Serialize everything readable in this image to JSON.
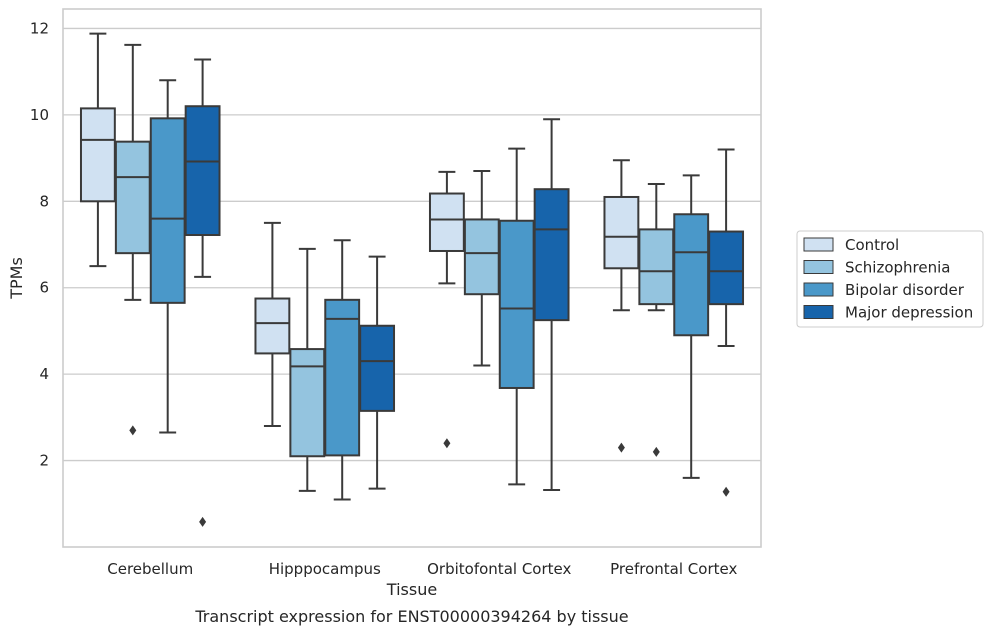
{
  "chart_data": {
    "type": "box",
    "title": "",
    "caption": "Transcript expression for ENST00000394264 by tissue",
    "xlabel": "Tissue",
    "ylabel": "TPMs",
    "ylim": [
      0,
      12.45
    ],
    "yticks": [
      2,
      4,
      6,
      8,
      10,
      12
    ],
    "grid": "horizontal",
    "legend_position": "right",
    "categories": [
      "Cerebellum",
      "Hipppocampus",
      "Orbitofontal Cortex",
      "Prefrontal Cortex"
    ],
    "series": [
      {
        "name": "Control",
        "color": "#d0e1f2",
        "boxes": [
          {
            "whislo": 6.5,
            "q1": 8.0,
            "med": 9.42,
            "q3": 10.15,
            "whishi": 11.88,
            "fliers": []
          },
          {
            "whislo": 2.8,
            "q1": 4.48,
            "med": 5.18,
            "q3": 5.75,
            "whishi": 7.5,
            "fliers": []
          },
          {
            "whislo": 6.1,
            "q1": 6.85,
            "med": 7.58,
            "q3": 8.18,
            "whishi": 8.68,
            "fliers": [
              2.4
            ]
          },
          {
            "whislo": 5.48,
            "q1": 6.45,
            "med": 7.18,
            "q3": 8.1,
            "whishi": 8.95,
            "fliers": [
              2.3
            ]
          }
        ]
      },
      {
        "name": "Schizophrenia",
        "color": "#94c4df",
        "boxes": [
          {
            "whislo": 5.72,
            "q1": 6.8,
            "med": 8.56,
            "q3": 9.38,
            "whishi": 11.62,
            "fliers": [
              2.7
            ]
          },
          {
            "whislo": 1.3,
            "q1": 2.1,
            "med": 4.18,
            "q3": 4.58,
            "whishi": 6.9,
            "fliers": []
          },
          {
            "whislo": 4.2,
            "q1": 5.85,
            "med": 6.8,
            "q3": 7.58,
            "whishi": 8.7,
            "fliers": []
          },
          {
            "whislo": 5.48,
            "q1": 5.62,
            "med": 6.38,
            "q3": 7.35,
            "whishi": 8.4,
            "fliers": [
              2.2
            ]
          }
        ]
      },
      {
        "name": "Bipolar disorder",
        "color": "#4a98c9",
        "boxes": [
          {
            "whislo": 2.65,
            "q1": 5.65,
            "med": 7.6,
            "q3": 9.92,
            "whishi": 10.8,
            "fliers": []
          },
          {
            "whislo": 1.1,
            "q1": 2.12,
            "med": 5.28,
            "q3": 5.72,
            "whishi": 7.1,
            "fliers": []
          },
          {
            "whislo": 1.45,
            "q1": 3.68,
            "med": 5.52,
            "q3": 7.55,
            "whishi": 9.22,
            "fliers": []
          },
          {
            "whislo": 1.6,
            "q1": 4.9,
            "med": 6.82,
            "q3": 7.7,
            "whishi": 8.6,
            "fliers": []
          }
        ]
      },
      {
        "name": "Major depression",
        "color": "#1764ab",
        "boxes": [
          {
            "whislo": 6.25,
            "q1": 7.22,
            "med": 8.92,
            "q3": 10.2,
            "whishi": 11.28,
            "fliers": [
              0.58
            ]
          },
          {
            "whislo": 1.35,
            "q1": 3.15,
            "med": 4.3,
            "q3": 5.12,
            "whishi": 6.72,
            "fliers": []
          },
          {
            "whislo": 1.32,
            "q1": 5.25,
            "med": 7.35,
            "q3": 8.28,
            "whishi": 9.9,
            "fliers": []
          },
          {
            "whislo": 4.65,
            "q1": 5.62,
            "med": 6.38,
            "q3": 7.3,
            "whishi": 9.2,
            "fliers": [
              1.28
            ]
          }
        ]
      }
    ]
  }
}
